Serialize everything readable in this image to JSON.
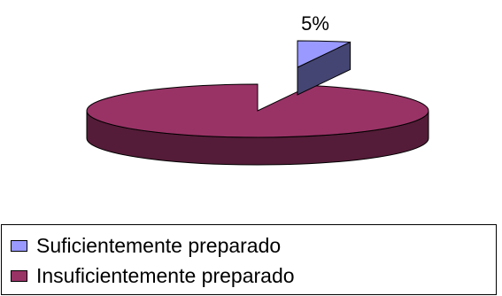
{
  "chart_data": {
    "type": "pie",
    "slices": [
      {
        "label": "Suficientemente preparado",
        "value": 5,
        "data_label": "5%",
        "color": "#9999ff"
      },
      {
        "label": "Insuficientemente preparado",
        "value": 95,
        "data_label": "",
        "color": "#993366"
      }
    ],
    "legend_position": "bottom",
    "three_d": true
  }
}
